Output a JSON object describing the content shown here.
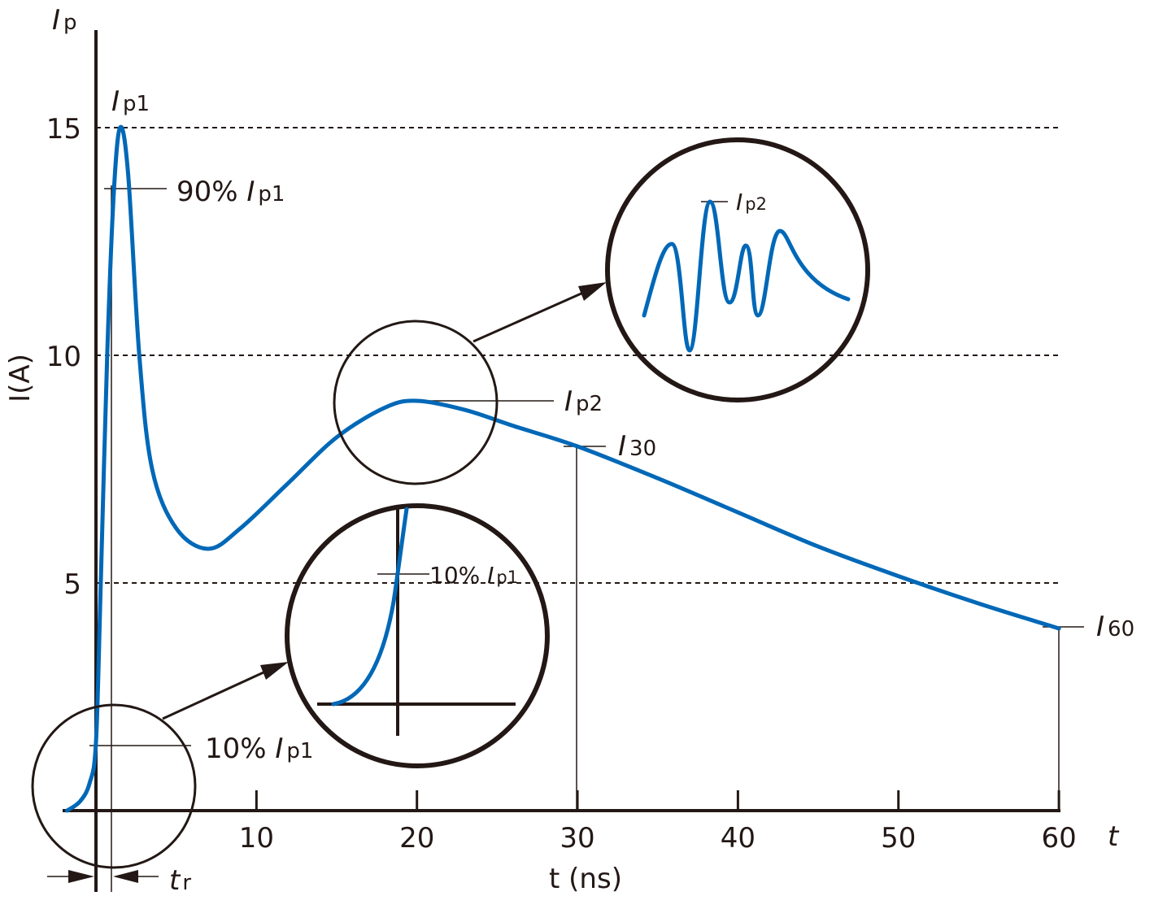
{
  "chart_data": {
    "type": "line",
    "title": "",
    "xlabel": "t (ns)",
    "ylabel": "I(A)",
    "y_axis_symbol": {
      "main": "I",
      "sub": "p"
    },
    "x_axis_symbol": "t",
    "xlim": [
      -2,
      60
    ],
    "ylim": [
      0,
      17
    ],
    "x_ticks": [
      "10",
      "20",
      "30",
      "40",
      "50",
      "60"
    ],
    "x_tick_values": [
      10,
      20,
      30,
      40,
      50,
      60
    ],
    "y_ticks": [
      "5",
      "10",
      "15"
    ],
    "y_tick_values": [
      5,
      10,
      15
    ],
    "grid": "dashed horizontal at 5, 10, 15",
    "line_color": "#0068b7",
    "series": [
      {
        "x": [
          -1.8,
          -1.0,
          -0.4,
          0,
          0.3,
          0.7,
          1.1,
          1.5,
          2.0,
          2.7,
          3.5,
          5,
          7,
          9,
          12,
          15,
          18,
          20,
          23,
          26,
          30,
          35,
          40,
          45,
          50,
          55,
          60
        ],
        "y": [
          0,
          0.2,
          0.6,
          1.5,
          5,
          10,
          13.5,
          15,
          14,
          10,
          7.5,
          6.2,
          5.75,
          6.2,
          7.2,
          8.2,
          8.85,
          9,
          8.8,
          8.45,
          8.0,
          7.3,
          6.55,
          5.8,
          5.15,
          4.55,
          4.0
        ]
      }
    ],
    "annotations": {
      "ip1": {
        "main": "I",
        "sub": "p1"
      },
      "p90": {
        "prefix": "90% ",
        "main": "I",
        "sub": "p1"
      },
      "p10": {
        "prefix": "10% ",
        "main": "I",
        "sub": "p1"
      },
      "p10_inset": {
        "prefix": "10% ",
        "main": "I",
        "sub": "p1"
      },
      "ip2": {
        "main": "I",
        "sub": "p2"
      },
      "ip2_inset": {
        "main": "I",
        "sub": "p2"
      },
      "i30": {
        "main": "I",
        "sub": "30"
      },
      "i60": {
        "main": "I",
        "sub": "60"
      },
      "tr": {
        "main": "t",
        "sub": "r"
      }
    }
  }
}
